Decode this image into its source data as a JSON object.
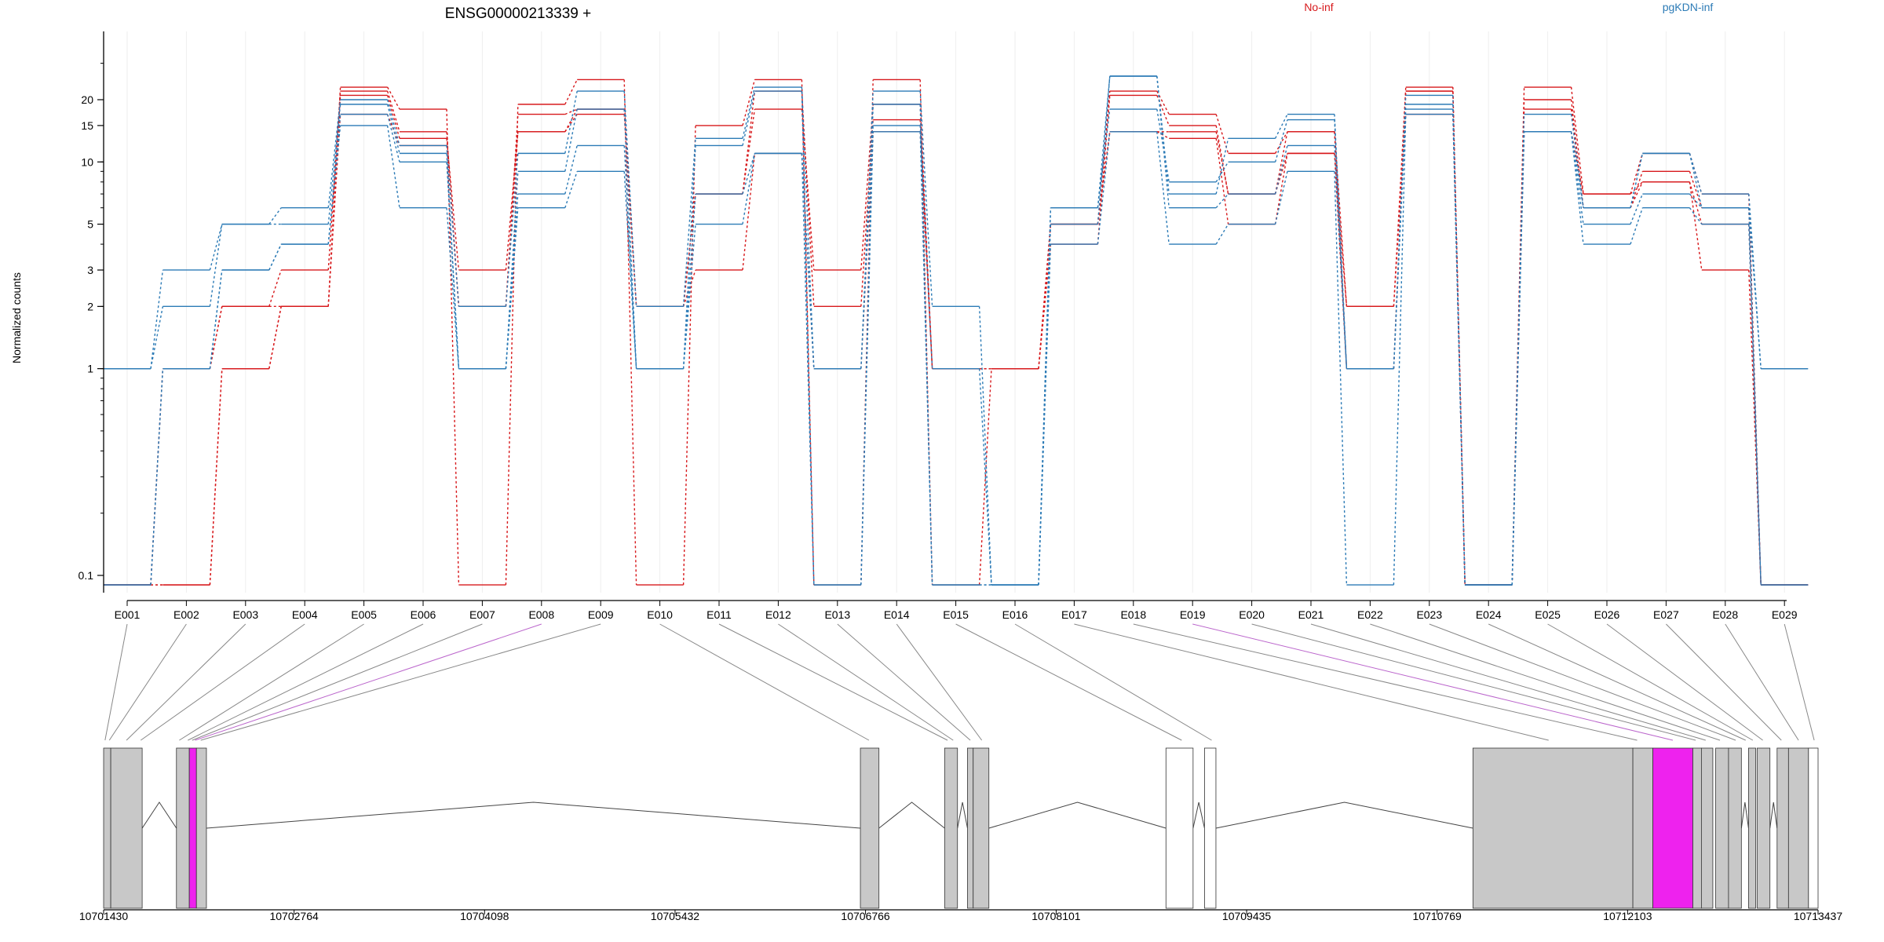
{
  "chart_data": [
    {
      "type": "line",
      "title": "ENSG00000213339 +",
      "ylabel": "Normalized counts",
      "xlabel": "",
      "y_scale": "log",
      "yticks": [
        0.1,
        1,
        2,
        3,
        5,
        10,
        15,
        20
      ],
      "categories": [
        "E001",
        "E002",
        "E003",
        "E004",
        "E005",
        "E006",
        "E007",
        "E008",
        "E009",
        "E010",
        "E011",
        "E012",
        "E013",
        "E014",
        "E015",
        "E016",
        "E017",
        "E018",
        "E019",
        "E020",
        "E021",
        "E022",
        "E023",
        "E024",
        "E025",
        "E026",
        "E027",
        "E028",
        "E029"
      ],
      "legend": [
        {
          "name": "No-inf",
          "color": "#d7191c"
        },
        {
          "name": "pgKDN-inf",
          "color": "#2c7bb6"
        }
      ],
      "series": [
        {
          "group": "No-inf",
          "color": "#d7191c",
          "values": [
            0.09,
            0.09,
            1,
            2,
            23,
            18,
            0.09,
            19,
            25,
            0.09,
            15,
            25,
            0.09,
            25,
            0.09,
            1,
            5,
            22,
            17,
            11,
            14,
            2,
            23,
            0.09,
            23,
            7,
            11,
            7,
            0.09
          ]
        },
        {
          "group": "No-inf",
          "color": "#d7191c",
          "values": [
            0.09,
            1,
            2,
            3,
            22,
            14,
            2,
            17,
            18,
            2,
            7,
            18,
            3,
            19,
            1,
            1,
            4,
            21,
            15,
            7,
            14,
            1,
            22,
            0.09,
            20,
            6,
            9,
            6,
            0.09
          ]
        },
        {
          "group": "No-inf",
          "color": "#d7191c",
          "values": [
            0.09,
            1,
            2,
            2,
            21,
            13,
            3,
            14,
            18,
            2,
            7,
            22,
            2,
            16,
            1,
            1,
            5,
            14,
            14,
            7,
            11,
            1,
            22,
            0.09,
            18,
            6,
            8,
            5,
            0.09
          ]
        },
        {
          "group": "No-inf",
          "color": "#d7191c",
          "values": [
            0.09,
            0.09,
            1,
            2,
            17,
            12,
            2,
            14,
            17,
            2,
            3,
            11,
            1,
            14,
            1,
            1,
            5,
            14,
            13,
            5,
            11,
            2,
            17,
            0.09,
            14,
            7,
            8,
            3,
            0.09
          ]
        },
        {
          "group": "pgKDN-inf",
          "color": "#2c7bb6",
          "values": [
            1,
            3,
            5,
            6,
            20,
            12,
            2,
            11,
            22,
            2,
            13,
            23,
            1,
            22,
            2,
            0.09,
            6,
            26,
            7,
            13,
            17,
            1,
            21,
            0.09,
            17,
            6,
            11,
            7,
            1
          ]
        },
        {
          "group": "pgKDN-inf",
          "color": "#2c7bb6",
          "values": [
            1,
            2,
            5,
            5,
            19,
            11,
            1,
            9,
            18,
            1,
            12,
            22,
            0.09,
            19,
            0.09,
            0.09,
            6,
            18,
            8,
            10,
            16,
            1,
            19,
            0.09,
            14,
            6,
            11,
            6,
            1
          ]
        },
        {
          "group": "pgKDN-inf",
          "color": "#2c7bb6",
          "values": [
            0.09,
            1,
            3,
            4,
            17,
            10,
            1,
            7,
            12,
            1,
            7,
            11,
            1,
            15,
            1,
            0.09,
            5,
            26,
            6,
            7,
            12,
            1,
            18,
            0.09,
            14,
            5,
            7,
            6,
            0.09
          ]
        },
        {
          "group": "pgKDN-inf",
          "color": "#2c7bb6",
          "values": [
            0.09,
            1,
            3,
            4,
            15,
            6,
            1,
            6,
            9,
            1,
            5,
            11,
            0.09,
            14,
            0.09,
            0.09,
            4,
            14,
            4,
            5,
            9,
            0.09,
            17,
            0.09,
            14,
            4,
            6,
            5,
            0.09
          ]
        }
      ]
    },
    {
      "type": "gene_model",
      "xticks": [
        "10701430",
        "10702764",
        "10704098",
        "10705432",
        "10706766",
        "10708101",
        "10709435",
        "10710769",
        "10712103",
        "10713437"
      ],
      "xlim": [
        10701430,
        10713437
      ],
      "exon_blocks": [
        {
          "start": 10701430,
          "end": 10701480,
          "fill": "#c8c8c8"
        },
        {
          "start": 10701480,
          "end": 10701700,
          "fill": "#c8c8c8"
        },
        {
          "start": 10701940,
          "end": 10702030,
          "fill": "#c8c8c8"
        },
        {
          "start": 10702030,
          "end": 10702080,
          "fill": "#ee22ee"
        },
        {
          "start": 10702080,
          "end": 10702150,
          "fill": "#c8c8c8"
        },
        {
          "start": 10706730,
          "end": 10706860,
          "fill": "#c8c8c8"
        },
        {
          "start": 10707320,
          "end": 10707410,
          "fill": "#c8c8c8"
        },
        {
          "start": 10707480,
          "end": 10707520,
          "fill": "#c8c8c8"
        },
        {
          "start": 10707520,
          "end": 10707630,
          "fill": "#c8c8c8"
        },
        {
          "start": 10708870,
          "end": 10709060,
          "fill": "#ffffff"
        },
        {
          "start": 10709140,
          "end": 10709220,
          "fill": "#ffffff"
        },
        {
          "start": 10711020,
          "end": 10712140,
          "fill": "#c8c8c8"
        },
        {
          "start": 10712140,
          "end": 10712280,
          "fill": "#c8c8c8"
        },
        {
          "start": 10712280,
          "end": 10712560,
          "fill": "#ee22ee"
        },
        {
          "start": 10712560,
          "end": 10712620,
          "fill": "#c8c8c8"
        },
        {
          "start": 10712620,
          "end": 10712700,
          "fill": "#c8c8c8"
        },
        {
          "start": 10712720,
          "end": 10712810,
          "fill": "#c8c8c8"
        },
        {
          "start": 10712810,
          "end": 10712900,
          "fill": "#c8c8c8"
        },
        {
          "start": 10712950,
          "end": 10713000,
          "fill": "#c8c8c8"
        },
        {
          "start": 10713010,
          "end": 10713100,
          "fill": "#c8c8c8"
        },
        {
          "start": 10713150,
          "end": 10713230,
          "fill": "#c8c8c8"
        },
        {
          "start": 10713230,
          "end": 10713370,
          "fill": "#c8c8c8"
        },
        {
          "start": 10713370,
          "end": 10713437,
          "fill": "#ffffff"
        }
      ],
      "introns": [
        {
          "start": 10701700,
          "end": 10701940
        },
        {
          "start": 10702150,
          "end": 10706730
        },
        {
          "start": 10706860,
          "end": 10707320
        },
        {
          "start": 10707410,
          "end": 10707480
        },
        {
          "start": 10707630,
          "end": 10708870
        },
        {
          "start": 10709060,
          "end": 10709140
        },
        {
          "start": 10709220,
          "end": 10711020
        },
        {
          "start": 10712900,
          "end": 10712950
        },
        {
          "start": 10713100,
          "end": 10713150
        }
      ],
      "exon_links": [
        {
          "exon": "E001",
          "pos": 10701440,
          "color": "#888888"
        },
        {
          "exon": "E002",
          "pos": 10701470,
          "color": "#888888"
        },
        {
          "exon": "E003",
          "pos": 10701590,
          "color": "#888888"
        },
        {
          "exon": "E004",
          "pos": 10701690,
          "color": "#888888"
        },
        {
          "exon": "E005",
          "pos": 10701960,
          "color": "#888888"
        },
        {
          "exon": "E006",
          "pos": 10702020,
          "color": "#888888"
        },
        {
          "exon": "E007",
          "pos": 10702050,
          "color": "#888888"
        },
        {
          "exon": "E008",
          "pos": 10702070,
          "color": "#bb66cc"
        },
        {
          "exon": "E009",
          "pos": 10702110,
          "color": "#888888"
        },
        {
          "exon": "E010",
          "pos": 10706790,
          "color": "#888888"
        },
        {
          "exon": "E011",
          "pos": 10707340,
          "color": "#888888"
        },
        {
          "exon": "E012",
          "pos": 10707380,
          "color": "#888888"
        },
        {
          "exon": "E013",
          "pos": 10707500,
          "color": "#888888"
        },
        {
          "exon": "E014",
          "pos": 10707580,
          "color": "#888888"
        },
        {
          "exon": "E015",
          "pos": 10708980,
          "color": "#888888"
        },
        {
          "exon": "E016",
          "pos": 10709190,
          "color": "#888888"
        },
        {
          "exon": "E017",
          "pos": 10711550,
          "color": "#888888"
        },
        {
          "exon": "E018",
          "pos": 10712170,
          "color": "#888888"
        },
        {
          "exon": "E019",
          "pos": 10712420,
          "color": "#bb66cc"
        },
        {
          "exon": "E020",
          "pos": 10712580,
          "color": "#888888"
        },
        {
          "exon": "E021",
          "pos": 10712650,
          "color": "#888888"
        },
        {
          "exon": "E022",
          "pos": 10712750,
          "color": "#888888"
        },
        {
          "exon": "E023",
          "pos": 10712860,
          "color": "#888888"
        },
        {
          "exon": "E024",
          "pos": 10712930,
          "color": "#888888"
        },
        {
          "exon": "E025",
          "pos": 10712980,
          "color": "#888888"
        },
        {
          "exon": "E026",
          "pos": 10713050,
          "color": "#888888"
        },
        {
          "exon": "E027",
          "pos": 10713180,
          "color": "#888888"
        },
        {
          "exon": "E028",
          "pos": 10713300,
          "color": "#888888"
        },
        {
          "exon": "E029",
          "pos": 10713410,
          "color": "#888888"
        }
      ]
    }
  ]
}
